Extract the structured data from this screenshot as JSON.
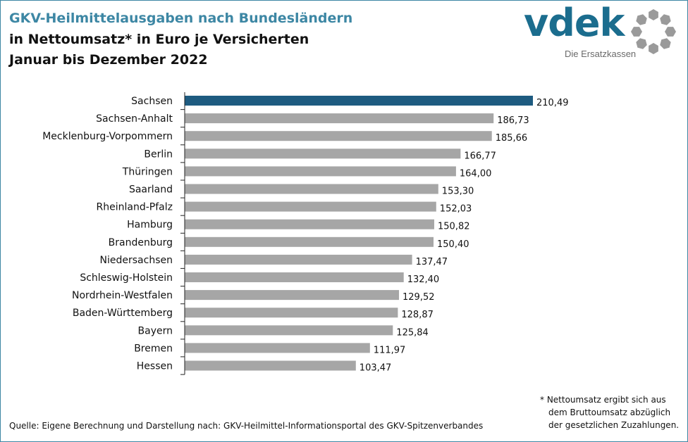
{
  "header": {
    "title": "GKV-Heilmittelausgaben nach Bundesländern",
    "subtitle": "in Nettoumsatz* in Euro je Versicherten",
    "period": "Januar bis Dezember 2022"
  },
  "logo": {
    "wordmark": "vdek",
    "tagline": "Die Ersatzkassen",
    "color": "#1b6d8e",
    "mark_color": "#9a9a9a"
  },
  "chart_data": {
    "type": "bar",
    "orientation": "horizontal",
    "categories": [
      "Sachsen",
      "Sachsen-Anhalt",
      "Mecklenburg-Vorpommern",
      "Berlin",
      "Thüringen",
      "Saarland",
      "Rheinland-Pfalz",
      "Hamburg",
      "Brandenburg",
      "Niedersachsen",
      "Schleswig-Holstein",
      "Nordrhein-Westfalen",
      "Baden-Württemberg",
      "Bayern",
      "Bremen",
      "Hessen"
    ],
    "values": [
      210.49,
      186.73,
      185.66,
      166.77,
      164.0,
      153.3,
      152.03,
      150.82,
      150.4,
      137.47,
      132.4,
      129.52,
      128.87,
      125.84,
      111.97,
      103.47
    ],
    "value_labels": [
      "210,49",
      "186,73",
      "185,66",
      "166,77",
      "164,00",
      "153,30",
      "152,03",
      "150,82",
      "150,40",
      "137,47",
      "132,40",
      "129,52",
      "128,87",
      "125,84",
      "111,97",
      "103,47"
    ],
    "highlight_index": 0,
    "colors": {
      "highlight": "#1e5b80",
      "default": "#a6a6a6"
    },
    "xlim": [
      0,
      210.49
    ],
    "grid": false,
    "legend": "none"
  },
  "footnote": {
    "lines": [
      "* Nettoumsatz ergibt sich aus",
      "dem Bruttoumsatz abzüglich",
      "der gesetzlichen Zuzahlungen."
    ]
  },
  "source": "Quelle: Eigene Berechnung und Darstellung nach: GKV-Heilmittel-Informationsportal des GKV-Spitzenverbandes"
}
